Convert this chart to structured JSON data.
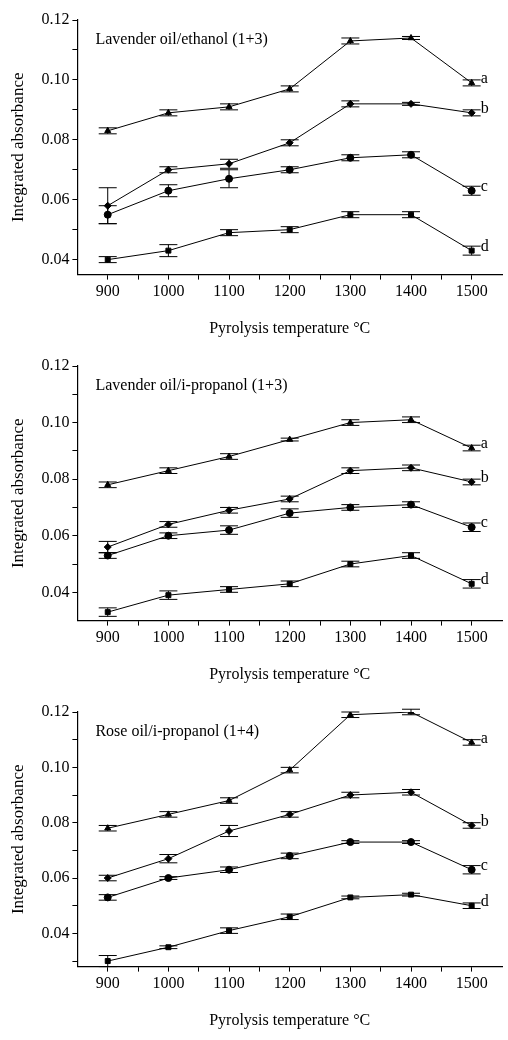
{
  "chart_data": [
    {
      "type": "line",
      "title": "Lavender oil/ethanol (1+3)",
      "xlabel": "Pyrolysis temperature °C",
      "ylabel": "Integrated absorbance",
      "x": [
        900,
        1000,
        1100,
        1200,
        1300,
        1400,
        1500
      ],
      "xlim": [
        850,
        1550
      ],
      "xticks": [
        900,
        {
          "value": 950,
          "label": null
        },
        1000,
        {
          "value": 1050,
          "label": null
        },
        1100,
        {
          "value": 1150,
          "label": null
        },
        1200,
        {
          "value": 1250,
          "label": null
        },
        1300,
        {
          "value": 1350,
          "label": null
        },
        1400,
        {
          "value": 1450,
          "label": null
        },
        1500
      ],
      "ylim": [
        0.035,
        0.12
      ],
      "yticks": [
        {
          "value": 0.04,
          "label": "0.04"
        },
        {
          "value": 0.05,
          "label": null
        },
        {
          "value": 0.06,
          "label": "0.06"
        },
        {
          "value": 0.07,
          "label": null
        },
        {
          "value": 0.08,
          "label": "0.08"
        },
        {
          "value": 0.09,
          "label": null
        },
        {
          "value": 0.1,
          "label": "0.10"
        },
        {
          "value": 0.11,
          "label": null
        },
        {
          "value": 0.12,
          "label": "0.12"
        }
      ],
      "series": [
        {
          "name": "a",
          "color": "#000000",
          "marker": "triangle",
          "values": [
            0.083,
            0.089,
            0.091,
            0.097,
            0.113,
            0.114,
            0.099
          ],
          "errors": [
            0.001,
            0.001,
            0.001,
            0.001,
            0.001,
            0.0005,
            0.001
          ]
        },
        {
          "name": "b",
          "color": "#000000",
          "marker": "diamond",
          "values": [
            0.058,
            0.07,
            0.072,
            0.079,
            0.092,
            0.092,
            0.089
          ],
          "errors": [
            0.006,
            0.001,
            0.0015,
            0.001,
            0.001,
            0.0005,
            0.001
          ]
        },
        {
          "name": "c",
          "color": "#000000",
          "marker": "circle",
          "values": [
            0.055,
            0.063,
            0.067,
            0.07,
            0.074,
            0.075,
            0.063
          ],
          "errors": [
            0.003,
            0.002,
            0.003,
            0.001,
            0.001,
            0.001,
            0.0015
          ]
        },
        {
          "name": "d",
          "color": "#000000",
          "marker": "square",
          "values": [
            0.04,
            0.043,
            0.049,
            0.05,
            0.055,
            0.055,
            0.043
          ],
          "errors": [
            0.001,
            0.002,
            0.001,
            0.001,
            0.001,
            0.001,
            0.0015
          ]
        }
      ]
    },
    {
      "type": "line",
      "title": "Lavender oil/i-propanol (1+3)",
      "xlabel": "Pyrolysis temperature °C",
      "ylabel": "Integrated absorbance",
      "x": [
        900,
        1000,
        1100,
        1200,
        1300,
        1400,
        1500
      ],
      "xlim": [
        850,
        1550
      ],
      "xticks": [
        900,
        {
          "value": 950,
          "label": null
        },
        1000,
        {
          "value": 1050,
          "label": null
        },
        1100,
        {
          "value": 1150,
          "label": null
        },
        1200,
        {
          "value": 1250,
          "label": null
        },
        1300,
        {
          "value": 1350,
          "label": null
        },
        1400,
        {
          "value": 1450,
          "label": null
        },
        1500
      ],
      "ylim": [
        0.03,
        0.12
      ],
      "yticks": [
        {
          "value": 0.04,
          "label": "0.04"
        },
        {
          "value": 0.05,
          "label": null
        },
        {
          "value": 0.06,
          "label": "0.06"
        },
        {
          "value": 0.07,
          "label": null
        },
        {
          "value": 0.08,
          "label": "0.08"
        },
        {
          "value": 0.09,
          "label": null
        },
        {
          "value": 0.1,
          "label": "0.10"
        },
        {
          "value": 0.11,
          "label": null
        },
        {
          "value": 0.12,
          "label": "0.12"
        }
      ],
      "series": [
        {
          "name": "a",
          "color": "#000000",
          "marker": "triangle",
          "values": [
            0.078,
            0.083,
            0.088,
            0.094,
            0.1,
            0.101,
            0.091
          ],
          "errors": [
            0.001,
            0.001,
            0.001,
            0.0005,
            0.001,
            0.001,
            0.001
          ]
        },
        {
          "name": "b",
          "color": "#000000",
          "marker": "diamond",
          "values": [
            0.056,
            0.064,
            0.069,
            0.073,
            0.083,
            0.084,
            0.079
          ],
          "errors": [
            0.002,
            0.001,
            0.001,
            0.001,
            0.001,
            0.001,
            0.001
          ]
        },
        {
          "name": "c",
          "color": "#000000",
          "marker": "circle",
          "values": [
            0.053,
            0.06,
            0.062,
            0.068,
            0.07,
            0.071,
            0.063
          ],
          "errors": [
            0.001,
            0.001,
            0.0015,
            0.0015,
            0.001,
            0.001,
            0.0015
          ]
        },
        {
          "name": "d",
          "color": "#000000",
          "marker": "square",
          "values": [
            0.033,
            0.039,
            0.041,
            0.043,
            0.05,
            0.053,
            0.043
          ],
          "errors": [
            0.0015,
            0.0015,
            0.001,
            0.001,
            0.001,
            0.001,
            0.0015
          ]
        }
      ]
    },
    {
      "type": "line",
      "title": "Rose oil/i-propanol (1+4)",
      "xlabel": "Pyrolysis temperature °C",
      "ylabel": "Integrated absorbance",
      "x": [
        900,
        1000,
        1100,
        1200,
        1300,
        1400,
        1500
      ],
      "xlim": [
        850,
        1550
      ],
      "xticks": [
        900,
        {
          "value": 950,
          "label": null
        },
        1000,
        {
          "value": 1050,
          "label": null
        },
        1100,
        {
          "value": 1150,
          "label": null
        },
        1200,
        {
          "value": 1250,
          "label": null
        },
        1300,
        {
          "value": 1350,
          "label": null
        },
        1400,
        {
          "value": 1450,
          "label": null
        },
        1500
      ],
      "ylim": [
        0.028,
        0.12
      ],
      "yticks": [
        {
          "value": 0.03,
          "label": null
        },
        {
          "value": 0.04,
          "label": "0.04"
        },
        {
          "value": 0.05,
          "label": null
        },
        {
          "value": 0.06,
          "label": "0.06"
        },
        {
          "value": 0.07,
          "label": null
        },
        {
          "value": 0.08,
          "label": "0.08"
        },
        {
          "value": 0.09,
          "label": null
        },
        {
          "value": 0.1,
          "label": "0.10"
        },
        {
          "value": 0.11,
          "label": null
        },
        {
          "value": 0.12,
          "label": "0.12"
        }
      ],
      "series": [
        {
          "name": "a",
          "color": "#000000",
          "marker": "triangle",
          "values": [
            0.078,
            0.083,
            0.088,
            0.099,
            0.119,
            0.12,
            0.109
          ],
          "errors": [
            0.001,
            0.001,
            0.001,
            0.001,
            0.001,
            0.001,
            0.001
          ]
        },
        {
          "name": "b",
          "color": "#000000",
          "marker": "diamond",
          "values": [
            0.06,
            0.067,
            0.077,
            0.083,
            0.09,
            0.091,
            0.079
          ],
          "errors": [
            0.001,
            0.0015,
            0.002,
            0.001,
            0.001,
            0.001,
            0.001
          ]
        },
        {
          "name": "c",
          "color": "#000000",
          "marker": "circle",
          "values": [
            0.053,
            0.06,
            0.063,
            0.068,
            0.073,
            0.073,
            0.063
          ],
          "errors": [
            0.001,
            0.0005,
            0.001,
            0.001,
            0.0005,
            0.0005,
            0.0015
          ]
        },
        {
          "name": "d",
          "color": "#000000",
          "marker": "square",
          "values": [
            0.03,
            0.035,
            0.041,
            0.046,
            0.053,
            0.054,
            0.05
          ],
          "errors": [
            0.002,
            0.0005,
            0.001,
            0.001,
            0.0005,
            0.0005,
            0.001
          ]
        }
      ]
    }
  ]
}
